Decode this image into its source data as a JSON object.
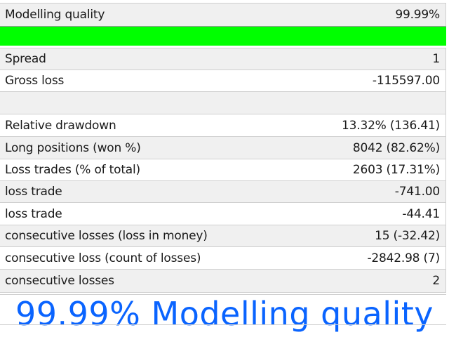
{
  "modelling": {
    "label": "Modelling quality",
    "value": "99.99%",
    "quality_fraction": 0.9999,
    "bar_color": "#00ff00"
  },
  "stats": [
    {
      "label": "Spread",
      "value": "1"
    },
    {
      "label": "Gross loss",
      "value": "-115597.00"
    },
    {
      "label": "",
      "value": ""
    },
    {
      "label": "Relative drawdown",
      "value": "13.32% (136.41)"
    },
    {
      "label": "Long positions (won %)",
      "value": "8042 (82.62%)"
    },
    {
      "label": "Loss trades (% of total)",
      "value": "2603 (17.31%)"
    },
    {
      "label": "loss trade",
      "value": "-741.00"
    },
    {
      "label": "loss trade",
      "value": "-44.41"
    },
    {
      "label": "consecutive losses (loss in money)",
      "value": "15 (-32.42)"
    },
    {
      "label": "consecutive loss (count of losses)",
      "value": "-2842.98 (7)"
    },
    {
      "label": "consecutive losses",
      "value": "2"
    }
  ],
  "caption": {
    "text": "99.99% Modelling quality",
    "color": "#0a64ff"
  }
}
